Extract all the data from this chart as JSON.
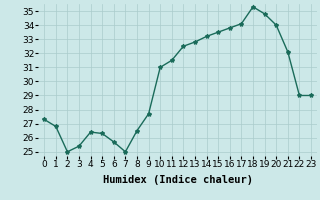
{
  "x": [
    0,
    1,
    2,
    3,
    4,
    5,
    6,
    7,
    8,
    9,
    10,
    11,
    12,
    13,
    14,
    15,
    16,
    17,
    18,
    19,
    20,
    21,
    22,
    23
  ],
  "y": [
    27.3,
    26.8,
    25.0,
    25.4,
    26.4,
    26.3,
    25.7,
    25.0,
    26.5,
    27.7,
    31.0,
    31.5,
    32.5,
    32.8,
    33.2,
    33.5,
    33.8,
    34.1,
    35.3,
    34.8,
    34.0,
    32.1,
    29.0,
    29.0
  ],
  "line_color": "#1a6b5a",
  "marker": "*",
  "marker_size": 3,
  "xlabel": "Humidex (Indice chaleur)",
  "ylim": [
    25,
    35
  ],
  "yticks": [
    25,
    26,
    27,
    28,
    29,
    30,
    31,
    32,
    33,
    34,
    35
  ],
  "xtick_labels": [
    "0",
    "1",
    "2",
    "3",
    "4",
    "5",
    "6",
    "7",
    "8",
    "9",
    "1011",
    "1213",
    "1415",
    "1617",
    "1819",
    "2021",
    "2223"
  ],
  "bg_color": "#cce8e8",
  "grid_color": "#aacccc",
  "xlabel_fontsize": 7.5,
  "tick_fontsize": 6.5,
  "line_width": 1.0
}
